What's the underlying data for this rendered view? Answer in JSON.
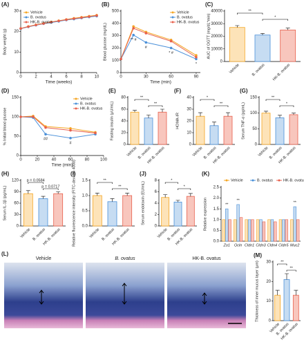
{
  "chart_data": [
    {
      "type": "line",
      "panel": "(A)",
      "x_label": "Time (weeks)",
      "y_label": "Body weight (g)",
      "legend": "upper left",
      "x": [
        0,
        1,
        2,
        3,
        4,
        5,
        6,
        7,
        8,
        9,
        10
      ],
      "xlim": [
        0,
        10
      ],
      "xticks": [
        0,
        2,
        4,
        6,
        8,
        10
      ],
      "ylim": [
        0,
        30
      ],
      "yticks": [
        0,
        10,
        20,
        30
      ],
      "series": [
        {
          "name": "Vehicle",
          "color": "#f5a623",
          "values": [
            21.5,
            22.5,
            23.3,
            24,
            24.7,
            25.3,
            25.9,
            26.5,
            27,
            27.5,
            28
          ]
        },
        {
          "name": "B. ovatus",
          "color": "#4a90d9",
          "values": [
            21.4,
            22.3,
            23.1,
            23.8,
            24.4,
            25,
            25.6,
            26.1,
            26.6,
            27.1,
            27.5
          ]
        },
        {
          "name": "HK-B. ovatus",
          "color": "#e8604c",
          "values": [
            21.5,
            22.4,
            23.2,
            23.9,
            24.6,
            25.2,
            25.8,
            26.3,
            26.8,
            27.3,
            27.8
          ]
        }
      ]
    },
    {
      "type": "line",
      "panel": "(B)",
      "x_label": "Time (min)",
      "y_label": "Blood glucose (mg/dL)",
      "legend": "upper right",
      "x": [
        0,
        15,
        30,
        60,
        90
      ],
      "xlim": [
        0,
        95
      ],
      "xticks": [
        0,
        30,
        60,
        90
      ],
      "ylim": [
        0,
        500
      ],
      "yticks": [
        0,
        100,
        200,
        300,
        400,
        500
      ],
      "series": [
        {
          "name": "Vehicle",
          "color": "#f5a623",
          "values": [
            110,
            375,
            330,
            265,
            140
          ]
        },
        {
          "name": "B. ovatus",
          "color": "#4a90d9",
          "values": [
            110,
            305,
            245,
            200,
            110
          ],
          "point_labels": [
            null,
            "** #",
            "#",
            "* #",
            "*"
          ]
        },
        {
          "name": "HK-B. ovatus",
          "color": "#e8604c",
          "values": [
            110,
            360,
            320,
            255,
            125
          ]
        }
      ]
    },
    {
      "type": "bar",
      "panel": "(C)",
      "y_label": "AUC of OGTT (mg/dL*min)",
      "categories": [
        "Vehicle",
        "B. ovatus",
        "HK-B. ovatus"
      ],
      "values": [
        27000,
        21000,
        25000
      ],
      "errors": [
        1500,
        1200,
        1500
      ],
      "colors": [
        "#f5a623",
        "#4a90d9",
        "#e8604c"
      ],
      "fill_colors": [
        "#fde3b8",
        "#c6dcf2",
        "#f8c6bd"
      ],
      "ylim": [
        0,
        40000
      ],
      "yticks": [
        0,
        10000,
        20000,
        30000,
        40000
      ],
      "comparisons": [
        {
          "pair": [
            0,
            1
          ],
          "text": "**"
        },
        {
          "pair": [
            1,
            2
          ],
          "text": "*"
        }
      ]
    },
    {
      "type": "line",
      "panel": "(D)",
      "x_label": "Time (min)",
      "y_label": "% Initial blood glucose",
      "legend": "upper right",
      "x": [
        0,
        15,
        30,
        60,
        90
      ],
      "xlim": [
        0,
        100
      ],
      "xticks": [
        0,
        20,
        40,
        60,
        80,
        100
      ],
      "ylim": [
        0,
        150
      ],
      "yticks": [
        0,
        50,
        100,
        150
      ],
      "series": [
        {
          "name": "Vehicle",
          "color": "#f5a623",
          "values": [
            100,
            102,
            75,
            70,
            60
          ]
        },
        {
          "name": "B. ovatus",
          "color": "#4a90d9",
          "values": [
            100,
            98,
            55,
            45,
            55
          ],
          "point_labels": [
            null,
            null,
            "##",
            "#",
            null
          ]
        },
        {
          "name": "HK-B. ovatus",
          "color": "#e8604c",
          "values": [
            100,
            100,
            72,
            65,
            58
          ]
        }
      ]
    },
    {
      "type": "bar",
      "panel": "(E)",
      "y_label": "Fasting insulin (μU/mL)",
      "categories": [
        "Vehicle",
        "B. ovatus",
        "HK-B. ovatus"
      ],
      "values": [
        55,
        45,
        55
      ],
      "errors": [
        3,
        5,
        5
      ],
      "colors": [
        "#f5a623",
        "#4a90d9",
        "#e8604c"
      ],
      "fill_colors": [
        "#fde3b8",
        "#c6dcf2",
        "#f8c6bd"
      ],
      "ylim": [
        0,
        80
      ],
      "yticks": [
        0,
        20,
        40,
        60,
        80
      ],
      "comparisons": [
        {
          "pair": [
            0,
            1
          ],
          "text": "**"
        },
        {
          "pair": [
            1,
            2
          ],
          "text": "**"
        }
      ]
    },
    {
      "type": "bar",
      "panel": "(F)",
      "y_label": "HOMA-IR",
      "categories": [
        "Vehicle",
        "B. ovatus",
        "HK-B. ovatus"
      ],
      "values": [
        24,
        16,
        24
      ],
      "errors": [
        3,
        3,
        3
      ],
      "colors": [
        "#f5a623",
        "#4a90d9",
        "#e8604c"
      ],
      "fill_colors": [
        "#fde3b8",
        "#c6dcf2",
        "#f8c6bd"
      ],
      "ylim": [
        0,
        40
      ],
      "yticks": [
        0,
        10,
        20,
        30,
        40
      ],
      "comparisons": [
        {
          "pair": [
            0,
            1
          ],
          "text": "*"
        },
        {
          "pair": [
            1,
            2
          ],
          "text": "**"
        }
      ]
    },
    {
      "type": "bar",
      "panel": "(G)",
      "y_label": "Serum TNF-α (pg/mL)",
      "categories": [
        "Vehicle",
        "B. ovatus",
        "HK-B. ovatus"
      ],
      "values": [
        100,
        85,
        95
      ],
      "errors": [
        6,
        8,
        5
      ],
      "colors": [
        "#f5a623",
        "#4a90d9",
        "#e8604c"
      ],
      "fill_colors": [
        "#fde3b8",
        "#c6dcf2",
        "#f8c6bd"
      ],
      "ylim": [
        0,
        150
      ],
      "yticks": [
        0,
        50,
        100,
        150
      ],
      "comparisons": [
        {
          "pair": [
            0,
            1
          ],
          "text": "**"
        },
        {
          "pair": [
            1,
            2
          ],
          "text": "*"
        }
      ]
    },
    {
      "type": "bar",
      "panel": "(H)",
      "y_label": "Serum IL-1β (pg/mL)",
      "categories": [
        "Vehicle",
        "B. ovatus",
        "HK-B. ovatus"
      ],
      "values": [
        85,
        72,
        85
      ],
      "errors": [
        8,
        6,
        5
      ],
      "colors": [
        "#f5a623",
        "#4a90d9",
        "#e8604c"
      ],
      "fill_colors": [
        "#fde3b8",
        "#c6dcf2",
        "#f8c6bd"
      ],
      "ylim": [
        0,
        120
      ],
      "yticks": [
        0,
        30,
        60,
        90,
        120
      ],
      "comparisons": [
        {
          "pair": [
            0,
            1
          ],
          "text": "p = 0.0584"
        },
        {
          "pair": [
            1,
            2
          ],
          "text": "p = 0.0717"
        }
      ]
    },
    {
      "type": "bar",
      "panel": "(I)",
      "y_label": "Relative fluorescence intensity (FITC-dextran 4000)",
      "categories": [
        "Vehicle",
        "B. ovatus",
        "HK-B. ovatus"
      ],
      "values": [
        1.0,
        0.8,
        1.0
      ],
      "errors": [
        0.08,
        0.1,
        0.08
      ],
      "colors": [
        "#f5a623",
        "#4a90d9",
        "#e8604c"
      ],
      "fill_colors": [
        "#fde3b8",
        "#c6dcf2",
        "#f8c6bd"
      ],
      "ylim": [
        0,
        1.5
      ],
      "yticks": [
        {
          "value": 0,
          "label": "0.0"
        },
        0.5,
        {
          "value": 1,
          "label": "1.0"
        },
        1.5
      ],
      "comparisons": [
        {
          "pair": [
            0,
            1
          ],
          "text": "**"
        },
        {
          "pair": [
            1,
            2
          ],
          "text": "**"
        }
      ]
    },
    {
      "type": "bar",
      "panel": "(J)",
      "y_label": "Serum endotoxin (EU/mL)",
      "categories": [
        "Vehicle",
        "B. ovatus",
        "HK-B. ovatus"
      ],
      "values": [
        5.0,
        4.2,
        5.2
      ],
      "errors": [
        0.5,
        0.3,
        0.5
      ],
      "colors": [
        "#f5a623",
        "#4a90d9",
        "#e8604c"
      ],
      "fill_colors": [
        "#fde3b8",
        "#c6dcf2",
        "#f8c6bd"
      ],
      "ylim": [
        0,
        8
      ],
      "yticks": [
        0,
        2,
        4,
        6,
        8
      ],
      "comparisons": [
        {
          "pair": [
            0,
            1
          ],
          "text": "*"
        },
        {
          "pair": [
            1,
            2
          ],
          "text": "*"
        }
      ]
    },
    {
      "type": "bar",
      "panel": "(K)",
      "y_label": "Relative expression",
      "legend": "top",
      "categories": [
        "Zo1",
        "Ocln",
        "Cldn1",
        "Cldn3",
        "Cldn4",
        "Cldn5",
        "Muc2"
      ],
      "ylim": [
        0,
        2.5
      ],
      "yticks": [
        {
          "value": 0,
          "label": "0.0"
        },
        0.5,
        {
          "value": 1,
          "label": "1.0"
        },
        1.5,
        {
          "value": 2,
          "label": "2.0"
        },
        2.5
      ],
      "series": [
        {
          "name": "Vehicle",
          "color": "#f5a623",
          "fill": "#fde3b8",
          "values": [
            1.0,
            1.0,
            1.0,
            1.0,
            1.0,
            1.0,
            1.0
          ]
        },
        {
          "name": "B. ovatus",
          "color": "#4a90d9",
          "fill": "#c6dcf2",
          "values": [
            1.5,
            1.7,
            1.0,
            1.0,
            1.0,
            1.0,
            1.6
          ],
          "point_labels": [
            "**",
            "**",
            null,
            null,
            null,
            null,
            "**"
          ]
        },
        {
          "name": "HK-B. ovatus",
          "color": "#e8604c",
          "fill": "#f8c6bd",
          "values": [
            1.0,
            1.1,
            1.0,
            0.9,
            0.9,
            1.0,
            1.0
          ]
        }
      ]
    },
    {
      "type": "bar",
      "panel": "(M)",
      "y_label": "Thickness of inner mucus layer (μm)",
      "categories": [
        "Vehicle",
        "B. ovatus",
        "HK-B. ovatus"
      ],
      "values": [
        13,
        21,
        13
      ],
      "errors": [
        2.5,
        3,
        2.5
      ],
      "colors": [
        "#f5a623",
        "#4a90d9",
        "#e8604c"
      ],
      "fill_colors": [
        "#fde3b8",
        "#c6dcf2",
        "#f8c6bd"
      ],
      "ylim": [
        0,
        30
      ],
      "yticks": [
        0,
        10,
        20,
        30
      ],
      "comparisons": [
        {
          "pair": [
            0,
            1
          ],
          "text": "**"
        },
        {
          "pair": [
            1,
            2
          ],
          "text": "**"
        }
      ]
    }
  ],
  "histology": {
    "panel": "(L)",
    "titles": [
      "Vehicle",
      "B. ovatus",
      "HK-B. ovatus"
    ]
  }
}
